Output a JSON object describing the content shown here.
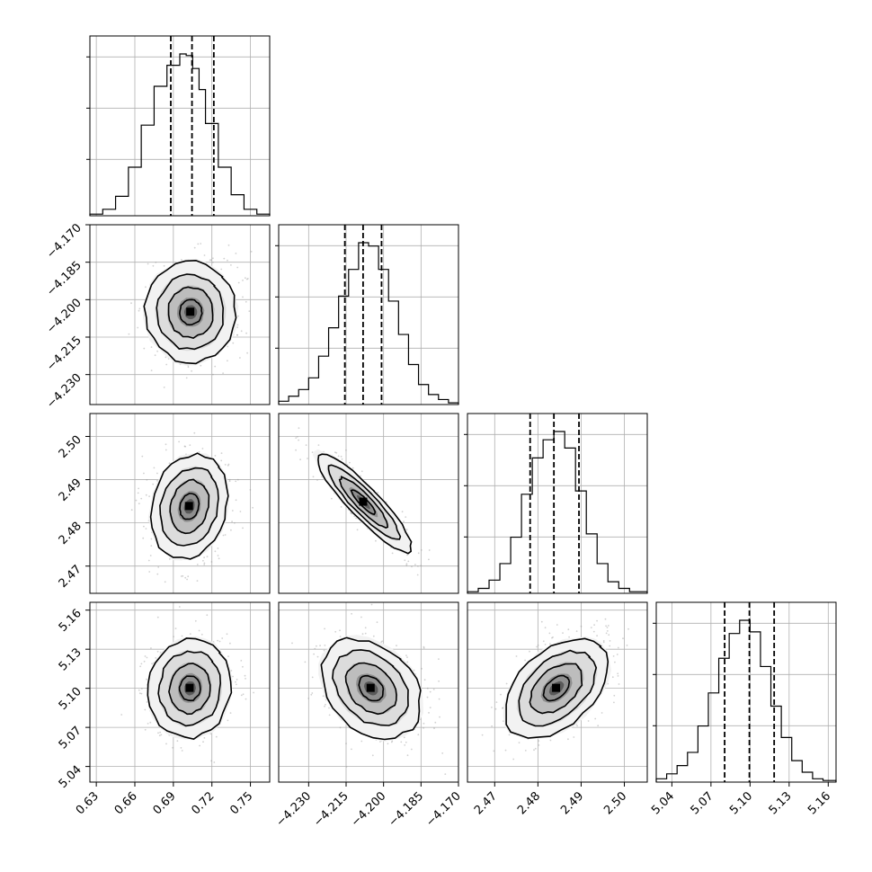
{
  "chart_data": {
    "type": "corner",
    "grid": true,
    "parameters": [
      {
        "range": [
          0.625,
          0.765
        ],
        "ticks": [
          "0.63",
          "0.66",
          "0.69",
          "0.72",
          "0.75"
        ],
        "tick_values": [
          0.63,
          0.66,
          0.69,
          0.72,
          0.75
        ],
        "quantiles": [
          0.688,
          0.7045,
          0.7215
        ]
      },
      {
        "range": [
          -4.242,
          -4.17
        ],
        "ticks": [
          "−4.170",
          "−4.185",
          "−4.200",
          "−4.215",
          "−4.230"
        ],
        "tick_values": [
          -4.17,
          -4.185,
          -4.2,
          -4.215,
          -4.23
        ],
        "x_ticks": [
          "−4.230",
          "−4.215",
          "−4.200",
          "−4.185",
          "−4.170"
        ],
        "x_tick_values": [
          -4.23,
          -4.215,
          -4.2,
          -4.185,
          -4.17
        ],
        "quantiles": [
          -4.2155,
          -4.2082,
          -4.2008
        ]
      },
      {
        "range": [
          2.4637,
          2.5053
        ],
        "ticks": [
          "2.50",
          "2.49",
          "2.48",
          "2.47"
        ],
        "tick_values": [
          2.5,
          2.49,
          2.48,
          2.47
        ],
        "x_ticks": [
          "2.47",
          "2.48",
          "2.49",
          "2.50"
        ],
        "x_tick_values": [
          2.47,
          2.48,
          2.49,
          2.5
        ],
        "quantiles": [
          2.4782,
          2.4837,
          2.4895
        ]
      },
      {
        "range": [
          5.028,
          5.166
        ],
        "ticks": [
          "5.16",
          "5.13",
          "5.10",
          "5.07",
          "5.04"
        ],
        "tick_values": [
          5.16,
          5.13,
          5.1,
          5.07,
          5.04
        ],
        "x_ticks": [
          "5.04",
          "5.07",
          "5.10",
          "5.13",
          "5.16"
        ],
        "x_tick_values": [
          5.04,
          5.07,
          5.1,
          5.13,
          5.16
        ],
        "quantiles": [
          5.0805,
          5.0995,
          5.1185
        ]
      }
    ],
    "histograms": [
      {
        "bins": [
          0.625,
          0.635,
          0.645,
          0.655,
          0.665,
          0.675,
          0.685,
          0.695,
          0.7,
          0.705,
          0.71,
          0.715,
          0.725,
          0.735,
          0.745,
          0.755,
          0.765
        ],
        "counts": [
          0.01,
          0.04,
          0.12,
          0.3,
          0.56,
          0.8,
          0.93,
          1.0,
          0.99,
          0.91,
          0.78,
          0.57,
          0.3,
          0.13,
          0.04,
          0.01
        ]
      },
      {
        "bins": [
          -4.242,
          -4.238,
          -4.234,
          -4.23,
          -4.226,
          -4.222,
          -4.218,
          -4.214,
          -4.21,
          -4.206,
          -4.202,
          -4.198,
          -4.194,
          -4.19,
          -4.186,
          -4.182,
          -4.178,
          -4.174,
          -4.17
        ],
        "counts": [
          0.02,
          0.05,
          0.09,
          0.16,
          0.29,
          0.46,
          0.65,
          0.81,
          0.97,
          0.95,
          0.81,
          0.62,
          0.42,
          0.24,
          0.12,
          0.06,
          0.03,
          0.01
        ]
      },
      {
        "bins": [
          2.4637,
          2.4662,
          2.4687,
          2.4712,
          2.4737,
          2.4762,
          2.4787,
          2.4812,
          2.4837,
          2.4862,
          2.4887,
          2.4912,
          2.4937,
          2.4962,
          2.4987,
          2.5012,
          2.5053
        ],
        "counts": [
          0.01,
          0.03,
          0.08,
          0.18,
          0.34,
          0.6,
          0.82,
          0.93,
          0.98,
          0.88,
          0.62,
          0.36,
          0.18,
          0.07,
          0.03,
          0.01
        ]
      },
      {
        "bins": [
          5.028,
          5.036,
          5.044,
          5.052,
          5.06,
          5.068,
          5.076,
          5.084,
          5.092,
          5.1,
          5.108,
          5.116,
          5.124,
          5.132,
          5.14,
          5.148,
          5.156,
          5.166
        ],
        "counts": [
          0.02,
          0.05,
          0.1,
          0.18,
          0.34,
          0.54,
          0.75,
          0.9,
          0.98,
          0.91,
          0.7,
          0.46,
          0.27,
          0.13,
          0.06,
          0.02,
          0.01
        ]
      }
    ],
    "pairs": [
      {
        "x": 0,
        "y": 1,
        "center": [
          0.7035,
          -4.205
        ],
        "sigma": [
          0.0175,
          0.01
        ],
        "rho": 0.0
      },
      {
        "x": 0,
        "y": 2,
        "center": [
          0.7025,
          2.4838
        ],
        "sigma": [
          0.015,
          0.006
        ],
        "rho": 0.18
      },
      {
        "x": 1,
        "y": 2,
        "center": [
          -4.208,
          2.4848
        ],
        "sigma": [
          0.0095,
          0.0057
        ],
        "rho": -0.9
      },
      {
        "x": 0,
        "y": 3,
        "center": [
          0.703,
          5.1
        ],
        "sigma": [
          0.016,
          0.019
        ],
        "rho": 0.05
      },
      {
        "x": 1,
        "y": 3,
        "center": [
          -4.205,
          5.1
        ],
        "sigma": [
          0.01,
          0.019
        ],
        "rho": -0.3
      },
      {
        "x": 2,
        "y": 3,
        "center": [
          2.4843,
          5.1
        ],
        "sigma": [
          0.006,
          0.019
        ],
        "rho": 0.45
      }
    ],
    "contour_levels": [
      0.5,
      1.0,
      1.5,
      2.0
    ]
  }
}
